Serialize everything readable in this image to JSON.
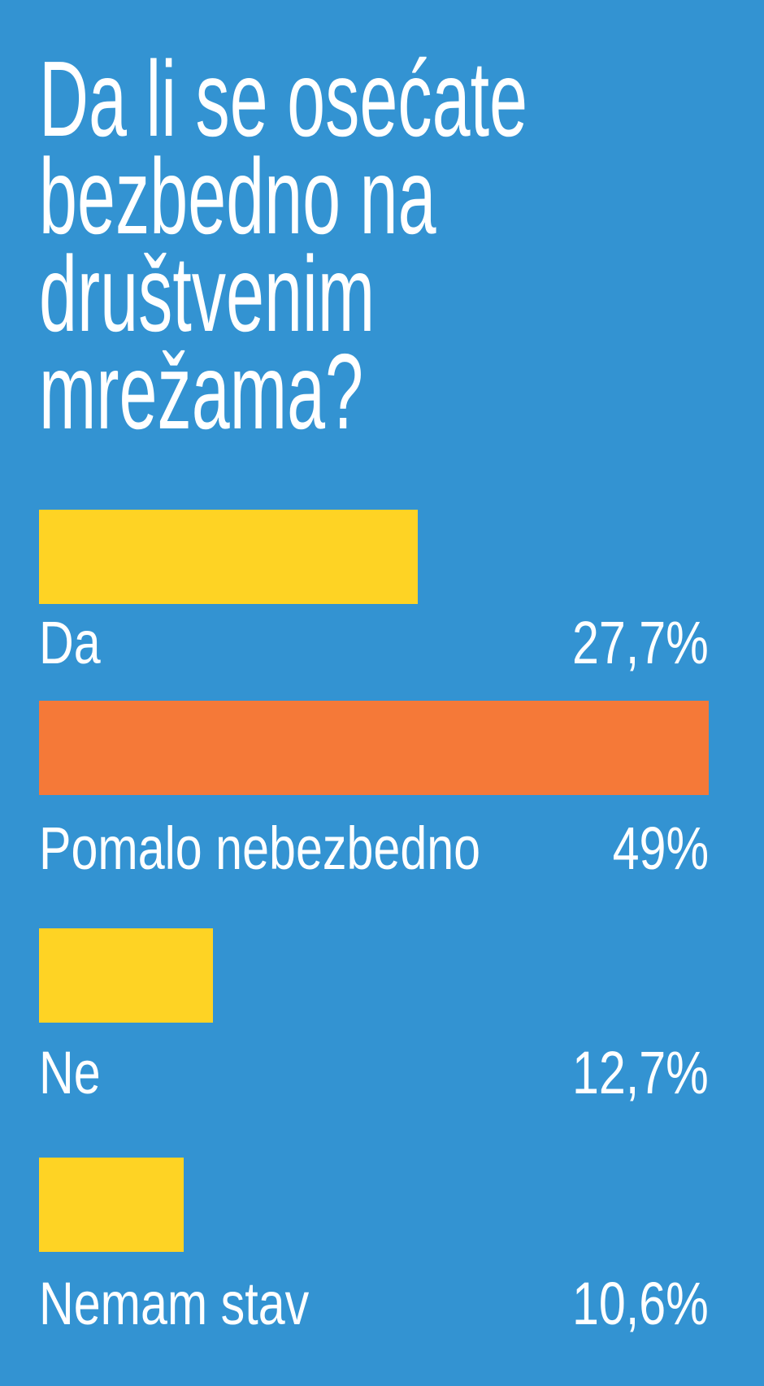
{
  "chart_data": {
    "type": "bar",
    "orientation": "horizontal",
    "title_lines": [
      "Da li se osećate",
      "bezbedno na",
      "društvenim",
      "mrežama?"
    ],
    "categories": [
      "Da",
      "Pomalo nebezbedno",
      "Ne",
      "Nemam stav"
    ],
    "values": [
      27.7,
      49,
      12.7,
      10.6
    ],
    "value_labels": [
      "27,7%",
      "49%",
      "12,7%",
      "10,6%"
    ],
    "bar_colors": [
      "#fed324",
      "#f57938",
      "#fed324",
      "#fed324"
    ],
    "xlim": [
      0,
      49
    ],
    "grid": false,
    "background": "#3393d2"
  }
}
